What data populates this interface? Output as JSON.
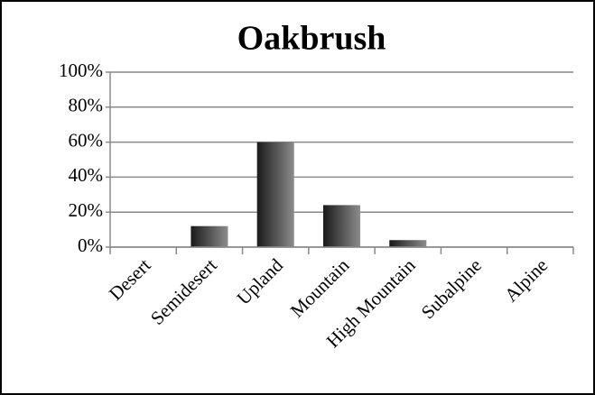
{
  "chart_data": {
    "type": "bar",
    "title": "Oakbrush",
    "categories": [
      "Desert",
      "Semidesert",
      "Upland",
      "Mountain",
      "High Mountain",
      "Subalpine",
      "Alpine"
    ],
    "values": [
      0,
      12,
      60,
      24,
      4,
      0,
      0
    ],
    "ylim": [
      0,
      100
    ],
    "yticks": [
      {
        "value": 0,
        "label": "0%"
      },
      {
        "value": 20,
        "label": "20%"
      },
      {
        "value": 40,
        "label": "40%"
      },
      {
        "value": 60,
        "label": "60%"
      },
      {
        "value": 80,
        "label": "80%"
      },
      {
        "value": 100,
        "label": "100%"
      }
    ],
    "grid": true
  }
}
